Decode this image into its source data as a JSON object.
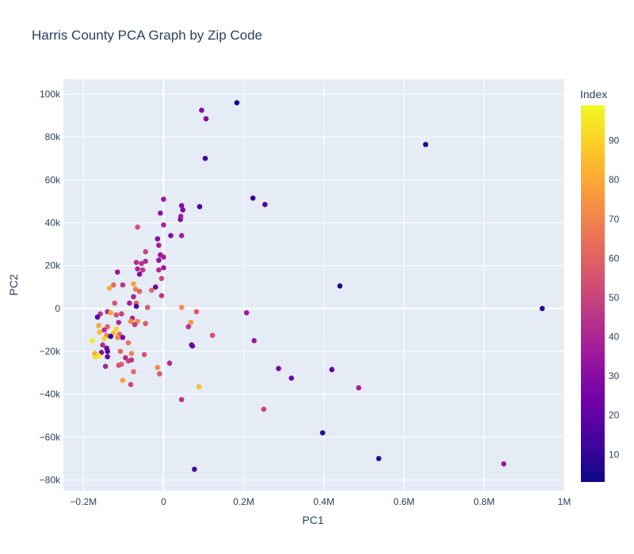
{
  "chart_data": {
    "type": "scatter",
    "title": "Harris County PCA Graph by Zip Code",
    "xlabel": "PC1",
    "ylabel": "PC2",
    "xlim": [
      -250000,
      1000000
    ],
    "ylim": [
      -85000,
      107000
    ],
    "x_ticks": [
      {
        "value": -200000,
        "label": "−0.2M"
      },
      {
        "value": 0,
        "label": "0"
      },
      {
        "value": 200000,
        "label": "0.2M"
      },
      {
        "value": 400000,
        "label": "0.4M"
      },
      {
        "value": 600000,
        "label": "0.6M"
      },
      {
        "value": 800000,
        "label": "0.8M"
      },
      {
        "value": 1000000,
        "label": "1M"
      }
    ],
    "y_ticks": [
      {
        "value": -80000,
        "label": "−80k"
      },
      {
        "value": -60000,
        "label": "−60k"
      },
      {
        "value": -40000,
        "label": "−40k"
      },
      {
        "value": -20000,
        "label": "−20k"
      },
      {
        "value": 0,
        "label": "0"
      },
      {
        "value": 20000,
        "label": "20k"
      },
      {
        "value": 40000,
        "label": "40k"
      },
      {
        "value": 60000,
        "label": "60k"
      },
      {
        "value": 80000,
        "label": "80k"
      },
      {
        "value": 100000,
        "label": "100k"
      }
    ],
    "colorbar": {
      "title": "Index",
      "range": [
        3,
        99
      ],
      "ticks": [
        10,
        20,
        30,
        40,
        50,
        60,
        70,
        80,
        90
      ],
      "colorscale": [
        "#0d0887",
        "#46039f",
        "#7201a8",
        "#9c179e",
        "#bd3786",
        "#d8576b",
        "#ed7953",
        "#fb9f3a",
        "#fdca26",
        "#f0f921"
      ]
    },
    "grid": true,
    "points": [
      {
        "x": 183000,
        "y": 96000,
        "index": 5
      },
      {
        "x": 95000,
        "y": 92500,
        "index": 30
      },
      {
        "x": 106000,
        "y": 88500,
        "index": 29
      },
      {
        "x": 654000,
        "y": 76500,
        "index": 8
      },
      {
        "x": 104000,
        "y": 70000,
        "index": 12
      },
      {
        "x": 223000,
        "y": 51500,
        "index": 10
      },
      {
        "x": 253000,
        "y": 48500,
        "index": 15
      },
      {
        "x": 0,
        "y": 51000,
        "index": 35
      },
      {
        "x": 45000,
        "y": 48000,
        "index": 30
      },
      {
        "x": 48000,
        "y": 46000,
        "index": 28
      },
      {
        "x": 90000,
        "y": 47500,
        "index": 14
      },
      {
        "x": -8000,
        "y": 44500,
        "index": 32
      },
      {
        "x": 43000,
        "y": 43000,
        "index": 38
      },
      {
        "x": 42000,
        "y": 41500,
        "index": 30
      },
      {
        "x": 0,
        "y": 39000,
        "index": 40
      },
      {
        "x": -65000,
        "y": 38000,
        "index": 55
      },
      {
        "x": 45000,
        "y": 34000,
        "index": 36
      },
      {
        "x": 18000,
        "y": 34000,
        "index": 28
      },
      {
        "x": -15000,
        "y": 32500,
        "index": 30
      },
      {
        "x": -12000,
        "y": 29500,
        "index": 38
      },
      {
        "x": -45000,
        "y": 26500,
        "index": 50
      },
      {
        "x": -8000,
        "y": 25000,
        "index": 34
      },
      {
        "x": 0,
        "y": 24000,
        "index": 38
      },
      {
        "x": -68000,
        "y": 21500,
        "index": 42
      },
      {
        "x": -55000,
        "y": 21000,
        "index": 44
      },
      {
        "x": -45000,
        "y": 22000,
        "index": 42
      },
      {
        "x": -12000,
        "y": 22500,
        "index": 33
      },
      {
        "x": -65000,
        "y": 18500,
        "index": 40
      },
      {
        "x": -52000,
        "y": 18000,
        "index": 45
      },
      {
        "x": -12000,
        "y": 18000,
        "index": 42
      },
      {
        "x": 0,
        "y": 19000,
        "index": 36
      },
      {
        "x": -115000,
        "y": 17000,
        "index": 35
      },
      {
        "x": -60000,
        "y": 16000,
        "index": 30
      },
      {
        "x": -5000,
        "y": 14000,
        "index": 52
      },
      {
        "x": -102000,
        "y": 11000,
        "index": 45
      },
      {
        "x": -125000,
        "y": 11000,
        "index": 62
      },
      {
        "x": -75000,
        "y": 11500,
        "index": 78
      },
      {
        "x": -20000,
        "y": 10000,
        "index": 25
      },
      {
        "x": -70000,
        "y": 9000,
        "index": 68
      },
      {
        "x": -60000,
        "y": 8000,
        "index": 60
      },
      {
        "x": -135000,
        "y": 9500,
        "index": 82
      },
      {
        "x": -30000,
        "y": 8500,
        "index": 62
      },
      {
        "x": -5000,
        "y": 6000,
        "index": 45
      },
      {
        "x": -75000,
        "y": 5500,
        "index": 40
      },
      {
        "x": 440000,
        "y": 10500,
        "index": 7
      },
      {
        "x": -85000,
        "y": 2500,
        "index": 38
      },
      {
        "x": -68000,
        "y": 2500,
        "index": 60
      },
      {
        "x": -68000,
        "y": 1000,
        "index": 15
      },
      {
        "x": -40000,
        "y": 500,
        "index": 58
      },
      {
        "x": -122000,
        "y": 2500,
        "index": 55
      },
      {
        "x": 45000,
        "y": 500,
        "index": 72
      },
      {
        "x": 945000,
        "y": 0,
        "index": 8
      },
      {
        "x": 82000,
        "y": -1500,
        "index": 58
      },
      {
        "x": 207000,
        "y": -2000,
        "index": 35
      },
      {
        "x": -140000,
        "y": -1500,
        "index": 42
      },
      {
        "x": -132000,
        "y": -2000,
        "index": 80
      },
      {
        "x": -158000,
        "y": -2500,
        "index": 45
      },
      {
        "x": -105000,
        "y": -2500,
        "index": 50
      },
      {
        "x": -118000,
        "y": -3000,
        "index": 55
      },
      {
        "x": -165000,
        "y": -4000,
        "index": 20
      },
      {
        "x": -78000,
        "y": -4500,
        "index": 40
      },
      {
        "x": -82000,
        "y": -6000,
        "index": 72
      },
      {
        "x": -65000,
        "y": -6000,
        "index": 72
      },
      {
        "x": -72000,
        "y": -7500,
        "index": 48
      },
      {
        "x": -45000,
        "y": -7000,
        "index": 58
      },
      {
        "x": -112000,
        "y": -6500,
        "index": 40
      },
      {
        "x": -162000,
        "y": -8000,
        "index": 80
      },
      {
        "x": 68000,
        "y": -6500,
        "index": 75
      },
      {
        "x": 62000,
        "y": -8500,
        "index": 45
      },
      {
        "x": -140000,
        "y": -8500,
        "index": 60
      },
      {
        "x": -148000,
        "y": -10000,
        "index": 45
      },
      {
        "x": -118000,
        "y": -9500,
        "index": 90
      },
      {
        "x": -160000,
        "y": -11000,
        "index": 85
      },
      {
        "x": -125000,
        "y": -11500,
        "index": 85
      },
      {
        "x": -110000,
        "y": -12000,
        "index": 60
      },
      {
        "x": -142000,
        "y": -12500,
        "index": 70
      },
      {
        "x": -132000,
        "y": -13000,
        "index": 8
      },
      {
        "x": -102000,
        "y": -13500,
        "index": 25
      },
      {
        "x": -115000,
        "y": -13500,
        "index": 72
      },
      {
        "x": -148000,
        "y": -14000,
        "index": 90
      },
      {
        "x": -178000,
        "y": -15000,
        "index": 95
      },
      {
        "x": 122000,
        "y": -12500,
        "index": 55
      },
      {
        "x": 226000,
        "y": -15000,
        "index": 35
      },
      {
        "x": -88000,
        "y": -16000,
        "index": 65
      },
      {
        "x": -152000,
        "y": -17000,
        "index": 42
      },
      {
        "x": 70000,
        "y": -17000,
        "index": 15
      },
      {
        "x": 72000,
        "y": -17500,
        "index": 25
      },
      {
        "x": -142000,
        "y": -18500,
        "index": 25
      },
      {
        "x": -140000,
        "y": -20000,
        "index": 15
      },
      {
        "x": -108000,
        "y": -20000,
        "index": 62
      },
      {
        "x": -155000,
        "y": -20500,
        "index": 30
      },
      {
        "x": -172000,
        "y": -21000,
        "index": 80
      },
      {
        "x": -80000,
        "y": -21000,
        "index": 70
      },
      {
        "x": -48000,
        "y": -21500,
        "index": 55
      },
      {
        "x": -162000,
        "y": -22000,
        "index": 97
      },
      {
        "x": -140000,
        "y": -22500,
        "index": 22
      },
      {
        "x": -170000,
        "y": -22500,
        "index": 92
      },
      {
        "x": -95000,
        "y": -23000,
        "index": 42
      },
      {
        "x": -88000,
        "y": -24500,
        "index": 52
      },
      {
        "x": -80000,
        "y": -24000,
        "index": 45
      },
      {
        "x": 15000,
        "y": -25500,
        "index": 42
      },
      {
        "x": -105000,
        "y": -26000,
        "index": 60
      },
      {
        "x": -112000,
        "y": -26500,
        "index": 55
      },
      {
        "x": -145000,
        "y": -27000,
        "index": 40
      },
      {
        "x": -15000,
        "y": -27500,
        "index": 72
      },
      {
        "x": 287000,
        "y": -28000,
        "index": 25
      },
      {
        "x": 420000,
        "y": -28500,
        "index": 20
      },
      {
        "x": -75000,
        "y": -29500,
        "index": 62
      },
      {
        "x": -10000,
        "y": -30500,
        "index": 58
      },
      {
        "x": 319000,
        "y": -32500,
        "index": 25
      },
      {
        "x": -102000,
        "y": -33500,
        "index": 78
      },
      {
        "x": -82000,
        "y": -35500,
        "index": 52
      },
      {
        "x": 88000,
        "y": -36500,
        "index": 85
      },
      {
        "x": 487000,
        "y": -37000,
        "index": 38
      },
      {
        "x": 45000,
        "y": -42500,
        "index": 45
      },
      {
        "x": 250000,
        "y": -47000,
        "index": 50
      },
      {
        "x": 397000,
        "y": -58000,
        "index": 10
      },
      {
        "x": 537000,
        "y": -70000,
        "index": 8
      },
      {
        "x": 849000,
        "y": -72500,
        "index": 35
      },
      {
        "x": 77000,
        "y": -75000,
        "index": 15
      }
    ]
  }
}
